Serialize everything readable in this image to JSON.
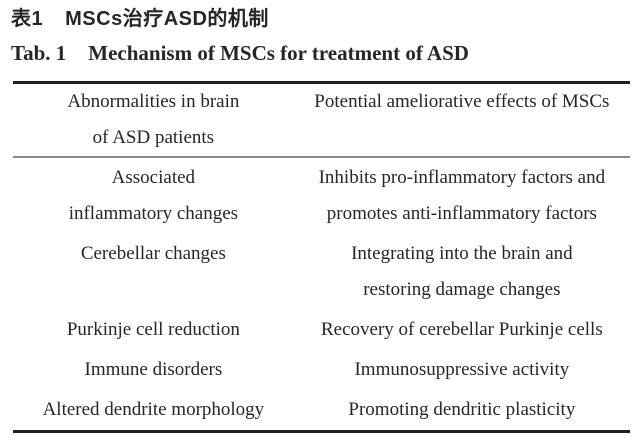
{
  "page": {
    "title_cn_label": "表1",
    "title_cn_text": "MSCs治疗ASD的机制",
    "title_en_label": "Tab. 1",
    "title_en_text": "Mechanism of MSCs for treatment of ASD"
  },
  "table": {
    "header": {
      "left_lines": [
        "Abnormalities in brain",
        "of ASD patients"
      ],
      "right_lines": [
        "Potential ameliorative effects of MSCs"
      ]
    },
    "rows": [
      {
        "left_lines": [
          "Associated",
          "inflammatory changes"
        ],
        "right_lines": [
          "Inhibits pro-inflammatory factors and",
          "promotes anti-inflammatory factors"
        ]
      },
      {
        "left_lines": [
          "Cerebellar changes"
        ],
        "right_lines": [
          "Integrating into the brain and",
          "restoring damage changes"
        ]
      },
      {
        "left_lines": [
          "Purkinje cell reduction"
        ],
        "right_lines": [
          "Recovery of cerebellar Purkinje cells"
        ]
      },
      {
        "left_lines": [
          "Immune disorders"
        ],
        "right_lines": [
          "Immunosuppressive activity"
        ]
      },
      {
        "left_lines": [
          "Altered dendrite morphology"
        ],
        "right_lines": [
          "Promoting dendritic plasticity"
        ]
      }
    ]
  },
  "colors": {
    "text": "#262626",
    "rule_dark": "#1f1f1f",
    "rule_gray": "#8a8a8a",
    "background": "#ffffff"
  }
}
